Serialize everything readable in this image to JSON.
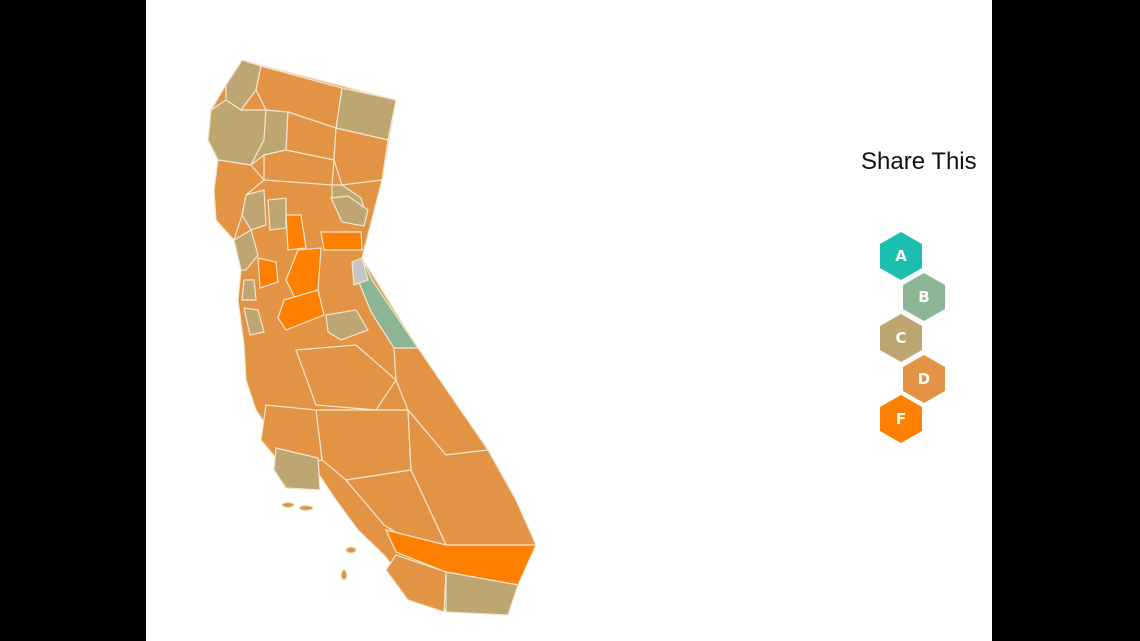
{
  "page": {
    "share_title": "Share This"
  },
  "colors": {
    "grade_a": "#1bbfb0",
    "grade_b": "#8cb595",
    "grade_c": "#bda671",
    "grade_d": "#e29444",
    "grade_f": "#ff8000",
    "no_data": "#c5c5c5",
    "background": "#ffffff",
    "letterbox": "#000000"
  },
  "legend": {
    "items": [
      {
        "grade": "A",
        "color": "#1bbfb0"
      },
      {
        "grade": "B",
        "color": "#8cb595"
      },
      {
        "grade": "C",
        "color": "#bda671"
      },
      {
        "grade": "D",
        "color": "#e29444"
      },
      {
        "grade": "F",
        "color": "#ff8000"
      }
    ]
  }
}
